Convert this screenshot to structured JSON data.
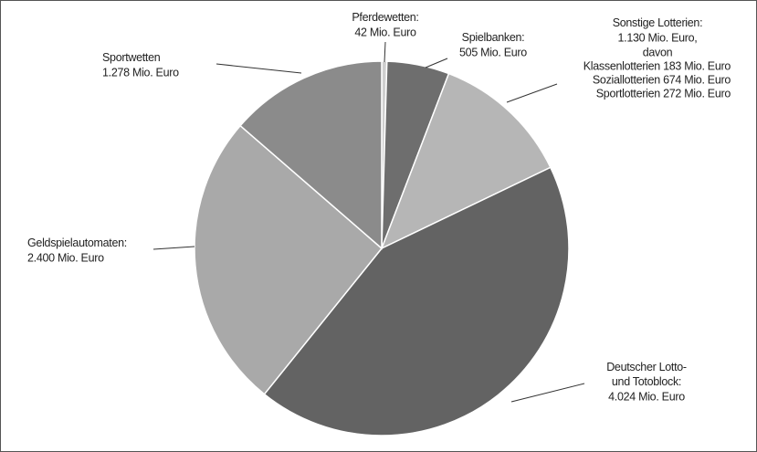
{
  "chart_data": {
    "type": "pie",
    "categories": [
      "Pferdewetten:",
      "Spielbanken:",
      "Sonstige Lotterien:",
      "Deutscher Lotto-\nund Totoblock:",
      "Geldspielautomaten:",
      "Sportwetten"
    ],
    "values": [
      42,
      505,
      1130,
      4024,
      2400,
      1278
    ],
    "value_labels": [
      "42 Mio. Euro",
      "505 Mio. Euro",
      "1.130 Mio. Euro,",
      "4.024 Mio. Euro",
      "2.400 Mio. Euro",
      "1.278 Mio. Euro"
    ],
    "colors": [
      "#cfcfcf",
      "#6e6e6e",
      "#b6b6b6",
      "#636363",
      "#a9a9a9",
      "#8b8b8b"
    ],
    "annotations": [
      "davon",
      "Klassenlotterien 183 Mio. Euro",
      "Soziallotterien 674 Mio. Euro",
      "Sportlotterien 272 Mio. Euro"
    ]
  }
}
